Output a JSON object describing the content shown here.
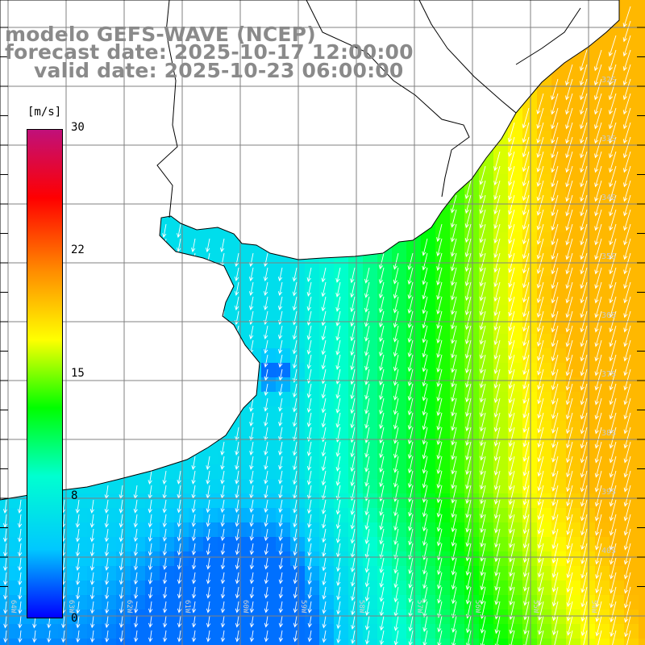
{
  "title": {
    "line1": "modelo GEFS-WAVE (NCEP)",
    "line2": "forecast date: 2025-10-17 12:00:00",
    "line3": "valid date: 2025-10-23 06:00:00"
  },
  "colorbar": {
    "unit": "[m/s]",
    "ticks": [
      "30",
      "22",
      "15",
      "8",
      "0"
    ],
    "stops": [
      "#0000ff",
      "#00c8ff",
      "#00ffd0",
      "#00ff00",
      "#ffff00",
      "#ff8c00",
      "#ff0000",
      "#c0107a"
    ]
  },
  "map": {
    "lat_labels": [
      "32S",
      "33S",
      "34S",
      "35S",
      "36S",
      "37S",
      "38S",
      "39S",
      "40S"
    ],
    "lon_labels": [
      "64W",
      "63W",
      "62W",
      "61W",
      "60W",
      "59W",
      "58W",
      "57W",
      "56W",
      "55W",
      "54W"
    ],
    "arrow_color": "#ffffff",
    "land_color": "#ffffff",
    "coast_color": "#000000",
    "grid_color": "#808080",
    "wind_direction": "north-northeast to south-southwest"
  }
}
